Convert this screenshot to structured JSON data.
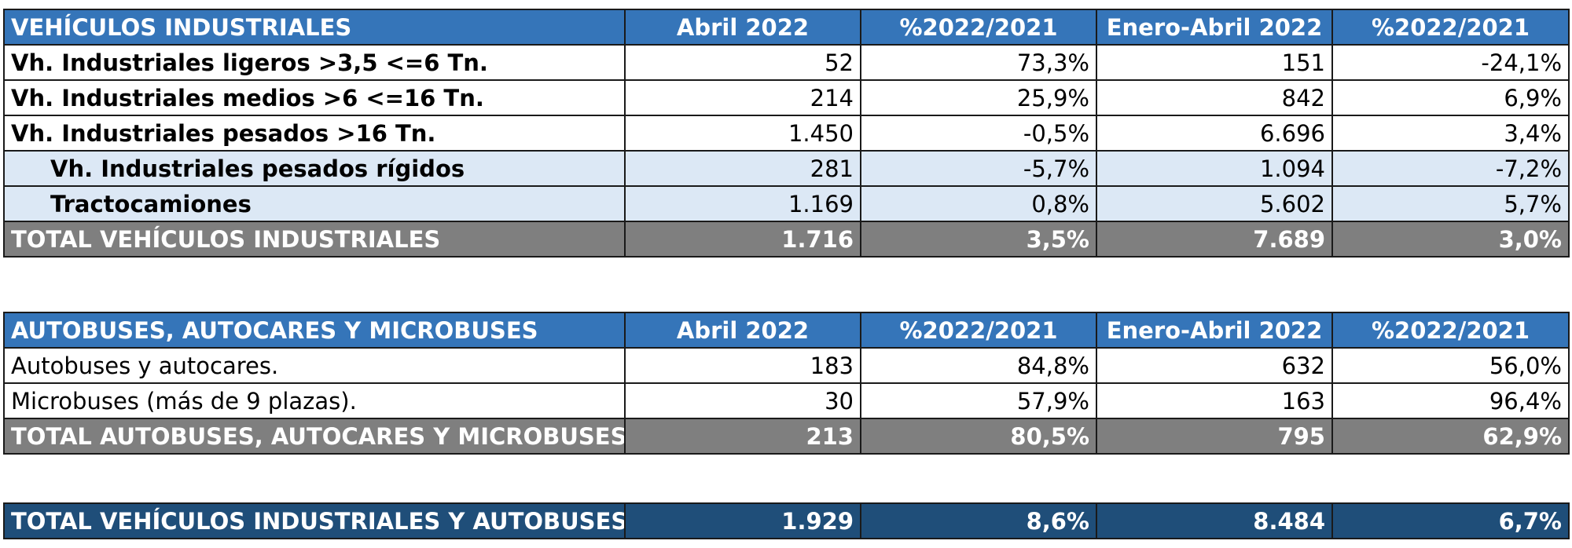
{
  "industrial": {
    "header": [
      "VEHÍCULOS INDUSTRIALES",
      "Abril 2022",
      "%2022/2021",
      "Enero-Abril 2022",
      "%2022/2021"
    ],
    "rows": [
      [
        "Vh. Industriales ligeros >3,5 <=6 Tn.",
        "52",
        "73,3%",
        "151",
        "-24,1%"
      ],
      [
        "Vh. Industriales medios >6  <=16 Tn.",
        "214",
        "25,9%",
        "842",
        "6,9%"
      ],
      [
        "Vh. Industriales  pesados >16 Tn.",
        "1.450",
        "-0,5%",
        "6.696",
        "3,4%"
      ],
      [
        "Vh. Industriales pesados rígidos",
        "281",
        "-5,7%",
        "1.094",
        "-7,2%"
      ],
      [
        "Tractocamiones",
        "1.169",
        "0,8%",
        "5.602",
        "5,7%"
      ]
    ],
    "total": [
      "TOTAL VEHÍCULOS INDUSTRIALES",
      "1.716",
      "3,5%",
      "7.689",
      "3,0%"
    ]
  },
  "buses": {
    "header": [
      "AUTOBUSES, AUTOCARES Y MICROBUSES",
      "Abril 2022",
      "%2022/2021",
      "Enero-Abril 2022",
      "%2022/2021"
    ],
    "rows": [
      [
        "Autobuses y autocares.",
        "183",
        "84,8%",
        "632",
        "56,0%"
      ],
      [
        "Microbuses (más de 9 plazas).",
        "30",
        "57,9%",
        "163",
        "96,4%"
      ]
    ],
    "total": [
      "TOTAL AUTOBUSES, AUTOCARES Y MICROBUSES",
      "213",
      "80,5%",
      "795",
      "62,9%"
    ]
  },
  "grand_total": [
    "TOTAL VEHÍCULOS INDUSTRIALES Y AUTOBUSES",
    "1.929",
    "8,6%",
    "8.484",
    "6,7%"
  ],
  "colors": {
    "header_bg": "#3575b9",
    "subrow_bg": "#dce8f5",
    "total_bg": "#7f7f7f",
    "grand_total_bg": "#1f4e79"
  }
}
